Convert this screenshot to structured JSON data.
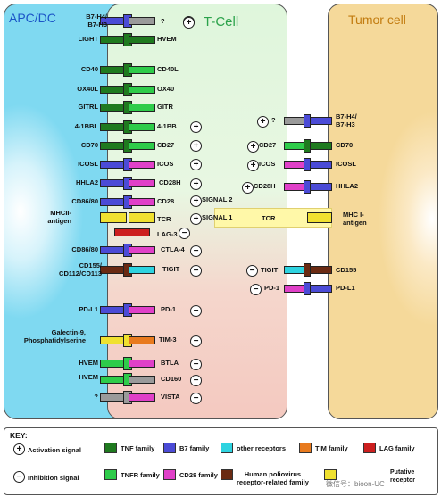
{
  "panels": {
    "apc": "APC/DC",
    "tcell": "T-Cell",
    "tumor": "Tumor cell"
  },
  "colors": {
    "tnf": "#1f7a1f",
    "b7": "#4b4bd6",
    "other": "#2ed3e0",
    "tim": "#e87a1e",
    "lag": "#cc1f1f",
    "tnfr": "#2ecc4a",
    "cd28": "#e040c8",
    "polio": "#6a2a12",
    "putative": "#f0e130",
    "unknown": "#9a9a9a"
  },
  "apc_ligands": [
    "B7-H4/\nB7-H3",
    "LIGHT",
    "CD40",
    "OX40L",
    "GITRL",
    "4-1BBL",
    "CD70",
    "ICOSL",
    "HHLA2",
    "CD86/80",
    "MHCII-\nantigen",
    "CD86/80",
    "CD155/\nCD112/CD113",
    "PD-L1",
    "Galectin-9,\nPhosphatidylserine",
    "HVEM",
    "HVEM",
    "?"
  ],
  "tcell_receptors": [
    "?",
    "HVEM",
    "CD40L",
    "OX40",
    "GITR",
    "4-1BB",
    "CD27",
    "ICOS",
    "CD28H",
    "CD28",
    "TCR",
    "LAG-3",
    "CTLA-4",
    "TIGIT",
    "PD-1",
    "TIM-3",
    "BTLA",
    "CD160",
    "VISTA"
  ],
  "signals": {
    "s2": "SIGNAL 2",
    "s1": "SIGNAL 1"
  },
  "tcell_right_receptors": [
    "?",
    "CD27",
    "ICOS",
    "CD28H",
    "TCR",
    "TIGIT",
    "PD-1"
  ],
  "tumor_ligands": [
    "B7-H4/\nB7-H3",
    "CD70",
    "ICOSL",
    "HHLA2",
    "MHC I-\nantigen",
    "CD155",
    "PD-L1"
  ],
  "sign_plus": "+",
  "sign_minus": "−",
  "key": {
    "title": "KEY:",
    "activation": "Activation signal",
    "inhibition": "Inhibition signal",
    "families": [
      "TNF family",
      "B7 family",
      "other receptors",
      "TIM family",
      "LAG family",
      "TNFR family",
      "CD28 family",
      "Human poliovirus\nreceptor-related family",
      "Putative\nreceptor"
    ],
    "watermark": "微信号：bioon-UC"
  }
}
